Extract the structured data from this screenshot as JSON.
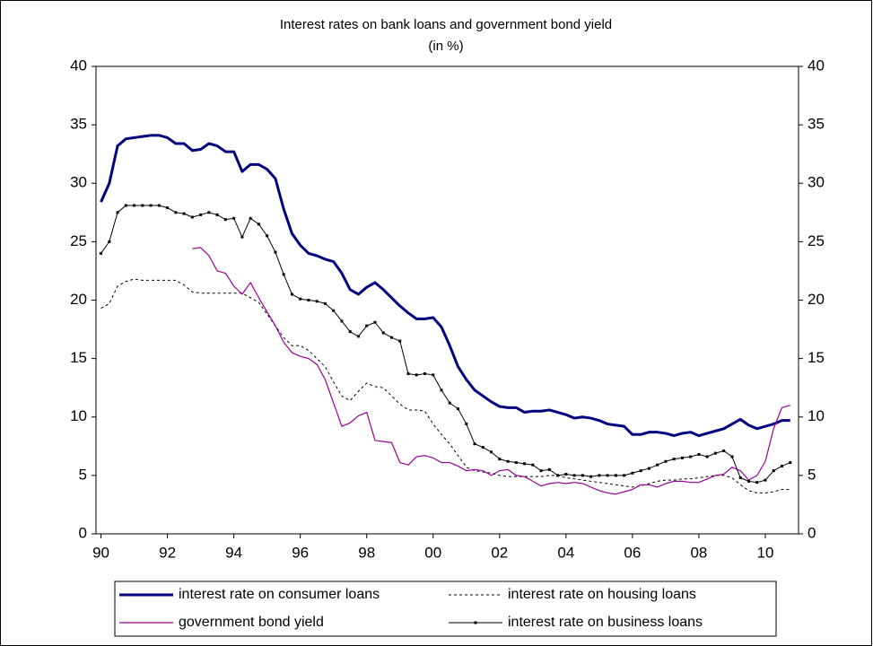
{
  "chart_data": {
    "type": "line",
    "title": "Interest rates on bank loans and government bond yield",
    "subtitle": "(in %)",
    "x": [
      1990,
      1990.25,
      1990.5,
      1990.75,
      1991,
      1991.25,
      1991.5,
      1991.75,
      1992,
      1992.25,
      1992.5,
      1992.75,
      1993,
      1993.25,
      1993.5,
      1993.75,
      1994,
      1994.25,
      1994.5,
      1994.75,
      1995,
      1995.25,
      1995.5,
      1995.75,
      1996,
      1996.25,
      1996.5,
      1996.75,
      1997,
      1997.25,
      1997.5,
      1997.75,
      1998,
      1998.25,
      1998.5,
      1998.75,
      1999,
      1999.25,
      1999.5,
      1999.75,
      2000,
      2000.25,
      2000.5,
      2000.75,
      2001,
      2001.25,
      2001.5,
      2001.75,
      2002,
      2002.25,
      2002.5,
      2002.75,
      2003,
      2003.25,
      2003.5,
      2003.75,
      2004,
      2004.25,
      2004.5,
      2004.75,
      2005,
      2005.25,
      2005.5,
      2005.75,
      2006,
      2006.25,
      2006.5,
      2006.75,
      2007,
      2007.25,
      2007.5,
      2007.75,
      2008,
      2008.25,
      2008.5,
      2008.75,
      2009,
      2009.25,
      2009.5,
      2009.75,
      2010,
      2010.25,
      2010.5,
      2010.75
    ],
    "series": [
      {
        "name": "interest rate on consumer loans",
        "color": "#000080",
        "width": 3,
        "style": "solid",
        "markers": false,
        "values": [
          28.4,
          30,
          33.2,
          33.8,
          33.9,
          34,
          34.1,
          34.1,
          33.9,
          33.4,
          33.4,
          32.8,
          32.9,
          33.4,
          33.2,
          32.7,
          32.7,
          31,
          31.6,
          31.6,
          31.2,
          30.4,
          27.8,
          25.7,
          24.7,
          24,
          23.8,
          23.5,
          23.3,
          22.3,
          20.9,
          20.5,
          21.1,
          21.5,
          20.9,
          20.2,
          19.5,
          18.9,
          18.4,
          18.4,
          18.5,
          17.7,
          16.1,
          14.3,
          13.2,
          12.3,
          11.8,
          11.3,
          10.9,
          10.8,
          10.8,
          10.4,
          10.5,
          10.5,
          10.6,
          10.4,
          10.2,
          9.9,
          10,
          9.9,
          9.7,
          9.4,
          9.3,
          9.2,
          8.5,
          8.5,
          8.7,
          8.7,
          8.6,
          8.4,
          8.6,
          8.7,
          8.4,
          8.6,
          8.8,
          9,
          9.4,
          9.8,
          9.3,
          9,
          9.2,
          9.4,
          9.7,
          9.7
        ]
      },
      {
        "name": "interest rate on housing loans",
        "color": "#000000",
        "width": 1,
        "style": "dashed",
        "markers": false,
        "values": [
          19.3,
          19.7,
          21.2,
          21.6,
          21.8,
          21.7,
          21.7,
          21.7,
          21.7,
          21.7,
          21.3,
          20.7,
          20.6,
          20.6,
          20.6,
          20.6,
          20.6,
          20.6,
          20.2,
          19.8,
          18.8,
          17.8,
          16.8,
          16.1,
          16.1,
          15.7,
          15,
          14.3,
          13,
          11.8,
          11.4,
          12.2,
          12.9,
          12.6,
          12.5,
          11.8,
          11.1,
          10.6,
          10.6,
          10.5,
          9.4,
          8.5,
          7.7,
          6.7,
          5.7,
          5.4,
          5.3,
          5.2,
          5,
          4.9,
          4.9,
          4.9,
          4.9,
          4.9,
          5,
          5,
          4.8,
          4.7,
          4.6,
          4.5,
          4.4,
          4.3,
          4.2,
          4.1,
          4,
          4.1,
          4.3,
          4.5,
          4.6,
          4.6,
          4.7,
          4.7,
          4.8,
          4.9,
          5,
          5,
          4.8,
          4.2,
          3.7,
          3.5,
          3.5,
          3.6,
          3.8,
          3.8
        ]
      },
      {
        "name": "government bond yield",
        "color": "#990099",
        "width": 1.2,
        "style": "solid",
        "markers": false,
        "values": [
          null,
          null,
          null,
          null,
          null,
          null,
          null,
          null,
          null,
          null,
          null,
          24.4,
          24.5,
          23.8,
          22.5,
          22.3,
          21.2,
          20.5,
          21.5,
          20.2,
          19,
          17.8,
          16.4,
          15.5,
          15.2,
          15,
          14.5,
          13.2,
          11.2,
          9.2,
          9.5,
          10.1,
          10.4,
          8,
          7.9,
          7.8,
          6.1,
          5.9,
          6.6,
          6.7,
          6.5,
          6.1,
          6.1,
          5.8,
          5.4,
          5.5,
          5.4,
          5,
          5.4,
          5.5,
          5,
          4.9,
          4.5,
          4.1,
          4.3,
          4.4,
          4.3,
          4.4,
          4.3,
          4,
          3.7,
          3.5,
          3.4,
          3.6,
          3.8,
          4.2,
          4.2,
          4,
          4.3,
          4.5,
          4.5,
          4.4,
          4.4,
          4.7,
          5,
          5.1,
          5.7,
          5.4,
          4.6,
          5,
          6.2,
          9,
          10.8,
          11
        ]
      },
      {
        "name": "interest rate on business loans",
        "color": "#000000",
        "width": 1,
        "style": "solid",
        "markers": true,
        "values": [
          24,
          25,
          27.5,
          28.1,
          28.1,
          28.1,
          28.1,
          28.1,
          27.9,
          27.5,
          27.4,
          27.1,
          27.3,
          27.5,
          27.3,
          26.9,
          27,
          25.4,
          27,
          26.5,
          25.5,
          24.1,
          22.2,
          20.5,
          20.1,
          20,
          19.9,
          19.7,
          19.1,
          18.2,
          17.3,
          16.9,
          17.8,
          18.1,
          17.2,
          16.8,
          16.5,
          13.7,
          13.6,
          13.7,
          13.6,
          12.3,
          11.2,
          10.7,
          9.4,
          7.7,
          7.4,
          7,
          6.4,
          6.2,
          6.1,
          6,
          5.9,
          5.4,
          5.5,
          5,
          5.1,
          5,
          5,
          4.9,
          5,
          5,
          5,
          5,
          5.2,
          5.4,
          5.6,
          5.9,
          6.2,
          6.4,
          6.5,
          6.6,
          6.8,
          6.6,
          6.9,
          7.1,
          6.6,
          4.8,
          4.5,
          4.4,
          4.6,
          5.4,
          5.8,
          6.1
        ]
      }
    ],
    "xlim": [
      1989.85,
      2011
    ],
    "xticks": [
      {
        "value": 1990,
        "label": "90"
      },
      {
        "value": 1992,
        "label": "92"
      },
      {
        "value": 1994,
        "label": "94"
      },
      {
        "value": 1996,
        "label": "96"
      },
      {
        "value": 1998,
        "label": "98"
      },
      {
        "value": 2000,
        "label": "00"
      },
      {
        "value": 2002,
        "label": "02"
      },
      {
        "value": 2004,
        "label": "04"
      },
      {
        "value": 2006,
        "label": "06"
      },
      {
        "value": 2008,
        "label": "08"
      },
      {
        "value": 2010,
        "label": "10"
      }
    ],
    "ylim": [
      0,
      40
    ],
    "yticks": [
      0,
      5,
      10,
      15,
      20,
      25,
      30,
      35,
      40
    ],
    "y2lim": [
      0,
      40
    ],
    "y2ticks": [
      0,
      5,
      10,
      15,
      20,
      25,
      30,
      35,
      40
    ],
    "grid": false,
    "legend": "bottom"
  }
}
